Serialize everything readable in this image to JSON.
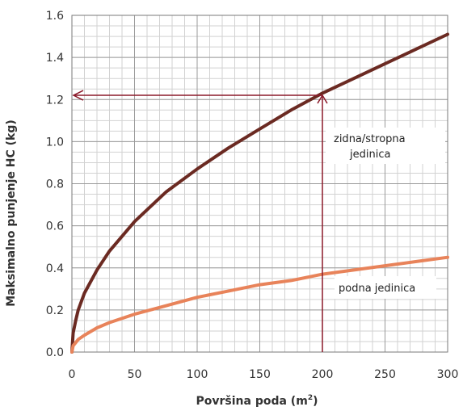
{
  "chart_data": {
    "type": "line",
    "xlabel": "Površina poda (m²)",
    "ylabel": "Maksimalno punjenje HC (kg)",
    "xlim": [
      0,
      300
    ],
    "ylim": [
      0,
      1.6
    ],
    "x_ticks": [
      0,
      50,
      100,
      150,
      200,
      250,
      300
    ],
    "y_ticks": [
      0.0,
      0.2,
      0.4,
      0.6,
      0.8,
      1.0,
      1.2,
      1.4,
      1.6
    ],
    "x_tick_labels": [
      "0",
      "50",
      "100",
      "150",
      "200",
      "250",
      "300"
    ],
    "y_tick_labels": [
      "0.0",
      "0.2",
      "0.4",
      "0.6",
      "0.8",
      "1.0",
      "1.2",
      "1.4",
      "1.6"
    ],
    "grid": true,
    "series": [
      {
        "name": "zidna/stropna jedinica",
        "color": "#6b2a22",
        "x": [
          0,
          1,
          3,
          5,
          10,
          20,
          30,
          50,
          75,
          100,
          125,
          150,
          175,
          200,
          225,
          250,
          275,
          300
        ],
        "y": [
          0.0,
          0.09,
          0.15,
          0.2,
          0.28,
          0.39,
          0.48,
          0.62,
          0.76,
          0.87,
          0.97,
          1.06,
          1.15,
          1.23,
          1.3,
          1.37,
          1.44,
          1.51
        ]
      },
      {
        "name": "podna jedinica",
        "color": "#e8835a",
        "x": [
          0,
          1,
          3,
          5,
          10,
          20,
          30,
          50,
          75,
          100,
          125,
          150,
          175,
          200,
          225,
          250,
          275,
          300
        ],
        "y": [
          0.0,
          0.03,
          0.045,
          0.06,
          0.08,
          0.115,
          0.14,
          0.18,
          0.22,
          0.26,
          0.29,
          0.32,
          0.34,
          0.37,
          0.39,
          0.41,
          0.43,
          0.45
        ]
      }
    ],
    "guide": {
      "x": 200,
      "y": 1.22,
      "color": "#8b1a2a"
    }
  }
}
